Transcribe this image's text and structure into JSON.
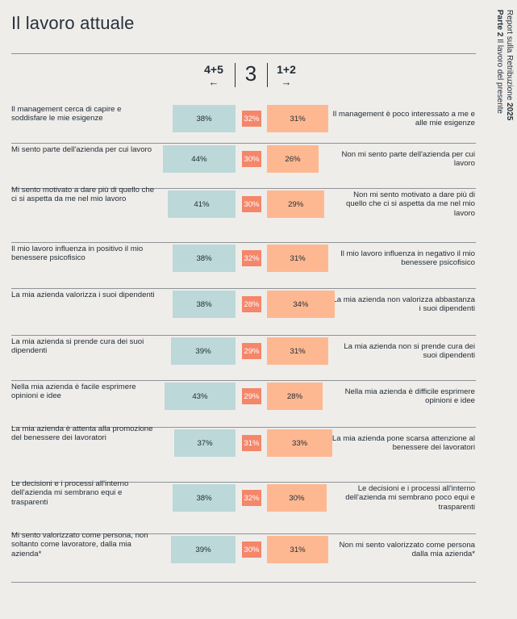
{
  "title": "Il lavoro attuale",
  "sidebar": {
    "report": "Report sulla Retribuzione",
    "year": "2025",
    "part": "Parte 2",
    "section": "Il lavoro del presente"
  },
  "header": {
    "left_label": "4+5",
    "left_arrow": "←",
    "middle_label": "3",
    "right_label": "1+2",
    "right_arrow": "→"
  },
  "colors": {
    "agree": "#bcd8d8",
    "neutral": "#f4866a",
    "disagree": "#fdb891"
  },
  "chart_data": {
    "type": "bar",
    "title": "Il lavoro attuale",
    "series": [
      {
        "name": "4+5",
        "values": [
          38,
          44,
          41,
          38,
          38,
          39,
          43,
          37,
          38,
          39
        ]
      },
      {
        "name": "3",
        "values": [
          32,
          30,
          30,
          32,
          28,
          29,
          29,
          31,
          32,
          30
        ]
      },
      {
        "name": "1+2",
        "values": [
          31,
          26,
          29,
          31,
          34,
          31,
          28,
          33,
          30,
          31
        ]
      }
    ],
    "rows": [
      {
        "left": "Il management cerca di capire e soddisfare le mie esigenze",
        "right": "Il management è poco interessato a me e alle mie esigenze",
        "agree": "38%",
        "neutral": "32%",
        "disagree": "31%"
      },
      {
        "left": "Mi sento parte dell'azienda per cui lavoro",
        "right": "Non mi sento parte dell'azienda per cui lavoro",
        "agree": "44%",
        "neutral": "30%",
        "disagree": "26%"
      },
      {
        "left": "Mi sento motivato a dare più di quello che ci si aspetta da me nel mio lavoro",
        "right": "Non mi sento motivato a dare più di quello che ci si aspetta da me nel mio lavoro",
        "agree": "41%",
        "neutral": "30%",
        "disagree": "29%"
      },
      {
        "left": "Il mio lavoro influenza in positivo il mio benessere psicofisico",
        "right": "Il mio lavoro influenza in negativo il mio benessere psicofisico",
        "agree": "38%",
        "neutral": "32%",
        "disagree": "31%"
      },
      {
        "left": "La mia azienda valorizza i suoi dipendenti",
        "right": "La mia azienda non valorizza abbastanza i suoi dipendenti",
        "agree": "38%",
        "neutral": "28%",
        "disagree": "34%"
      },
      {
        "left": "La mia azienda si prende cura dei suoi dipendenti",
        "right": "La mia azienda non si prende cura dei suoi dipendenti",
        "agree": "39%",
        "neutral": "29%",
        "disagree": "31%"
      },
      {
        "left": "Nella mia azienda è facile esprimere opinioni e idee",
        "right": "Nella mia azienda è difficile esprimere opinioni e idee",
        "agree": "43%",
        "neutral": "29%",
        "disagree": "28%"
      },
      {
        "left": "La mia azienda è attenta alla promozione del benessere dei lavoratori",
        "right": "La mia azienda pone scarsa attenzione al benessere dei lavoratori",
        "agree": "37%",
        "neutral": "31%",
        "disagree": "33%"
      },
      {
        "left": "Le decisioni e i processi all'interno dell'azienda mi sembrano equi e trasparenti",
        "right": "Le decisioni e i processi all'interno dell'azienda mi sembrano poco equi e trasparenti",
        "agree": "38%",
        "neutral": "32%",
        "disagree": "30%"
      },
      {
        "left": "Mi sento valorizzato come persona, non soltanto come lavoratore, dalla mia azienda*",
        "right": "Non mi sento valorizzato come persona dalla mia azienda*",
        "agree": "39%",
        "neutral": "30%",
        "disagree": "31%"
      }
    ]
  }
}
